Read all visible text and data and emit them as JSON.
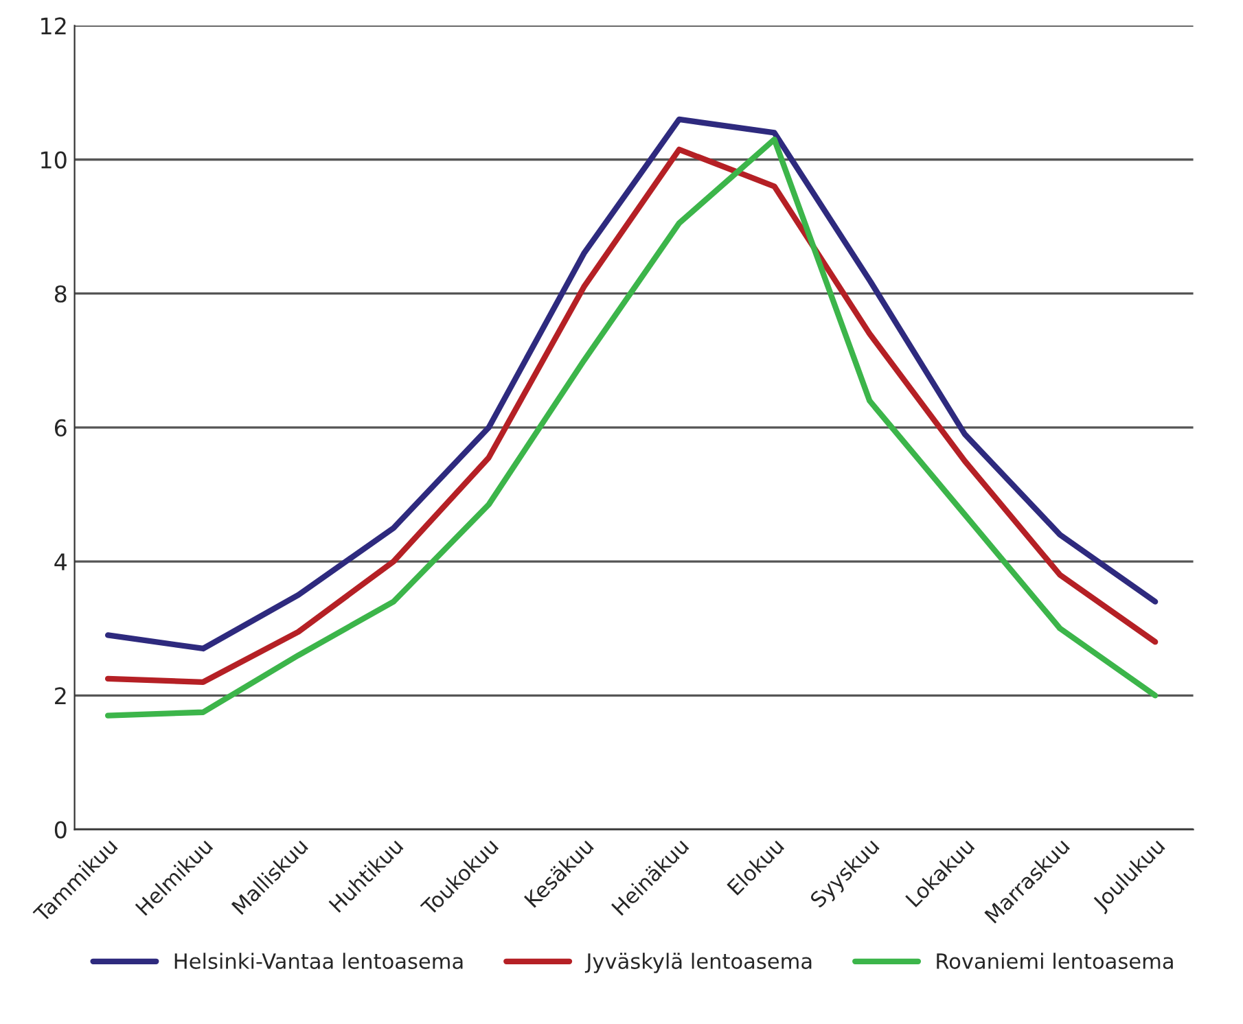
{
  "chart_data": {
    "type": "line",
    "categories": [
      "Tammikuu",
      "Helmikuu",
      "Malliskuu",
      "Huhtikuu",
      "Toukokuu",
      "Kesäkuu",
      "Heinäkuu",
      "Elokuu",
      "Syyskuu",
      "Lokakuu",
      "Marraskuu",
      "Joulukuu"
    ],
    "series": [
      {
        "name": "Helsinki-Vantaa lentoasema",
        "color": "#2e2a7e",
        "values": [
          2.9,
          2.7,
          3.5,
          4.5,
          6.0,
          8.6,
          10.6,
          10.4,
          8.2,
          5.9,
          4.4,
          3.4
        ]
      },
      {
        "name": "Jyväskylä lentoasema",
        "color": "#b52025",
        "values": [
          2.25,
          2.2,
          2.95,
          4.0,
          5.55,
          8.1,
          10.15,
          9.6,
          7.4,
          5.5,
          3.8,
          2.8
        ]
      },
      {
        "name": "Rovaniemi lentoasema",
        "color": "#3cb54a",
        "values": [
          1.7,
          1.75,
          2.6,
          3.4,
          4.85,
          7.0,
          9.05,
          10.3,
          6.4,
          4.7,
          3.0,
          2.0
        ]
      }
    ],
    "ylim": [
      0,
      12
    ],
    "yticks": [
      0,
      2,
      4,
      6,
      8,
      10,
      12
    ],
    "grid": "y",
    "legend": "bottom",
    "marker": "none",
    "line_style": "solid"
  }
}
